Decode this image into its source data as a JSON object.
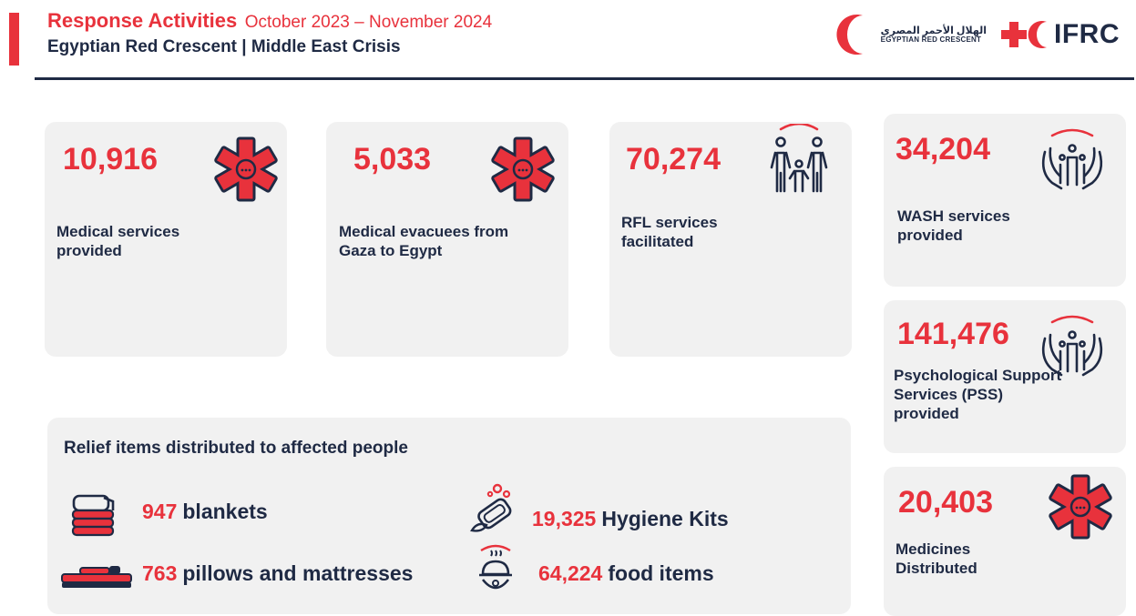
{
  "header": {
    "title_main": "Response Activities",
    "title_date": "October 2023 – November 2024",
    "subtitle": "Egyptian Red Crescent | Middle East Crisis",
    "logo_erc_arabic": "الهلال الأحمر المصري",
    "logo_erc_english": "EGYPTIAN RED CRESCENT",
    "logo_ifrc": "IFRC"
  },
  "stats": [
    {
      "value": "10,916",
      "label": "Medical services provided",
      "icon": "star-of-life-icon"
    },
    {
      "value": "5,033",
      "label": "Medical evacuees from Gaza to Egypt",
      "icon": "star-of-life-icon"
    },
    {
      "value": "70,274",
      "label": "RFL services facilitated",
      "icon": "family-icon"
    },
    {
      "value": "34,204",
      "label": "WASH services provided",
      "icon": "hands-people-icon"
    },
    {
      "value": "141,476",
      "label": "Psychological Support Services (PSS) provided",
      "icon": "hands-people-icon"
    },
    {
      "value": "20,403",
      "label": "Medicines Distributed",
      "icon": "star-of-life-icon"
    }
  ],
  "relief": {
    "title": "Relief items distributed to affected people",
    "items": [
      {
        "value": "947",
        "label": "blankets",
        "icon": "blankets-icon"
      },
      {
        "value": "19,325",
        "label": "Hygiene Kits",
        "icon": "hygiene-kit-icon"
      },
      {
        "value": "763",
        "label": "pillows and mattresses",
        "icon": "mattress-icon"
      },
      {
        "value": "64,224",
        "label": "food items",
        "icon": "food-bowl-icon"
      }
    ]
  },
  "colors": {
    "accent_red": "#e8323c",
    "navy": "#1f2a44",
    "card_bg": "#f1f1f1"
  }
}
